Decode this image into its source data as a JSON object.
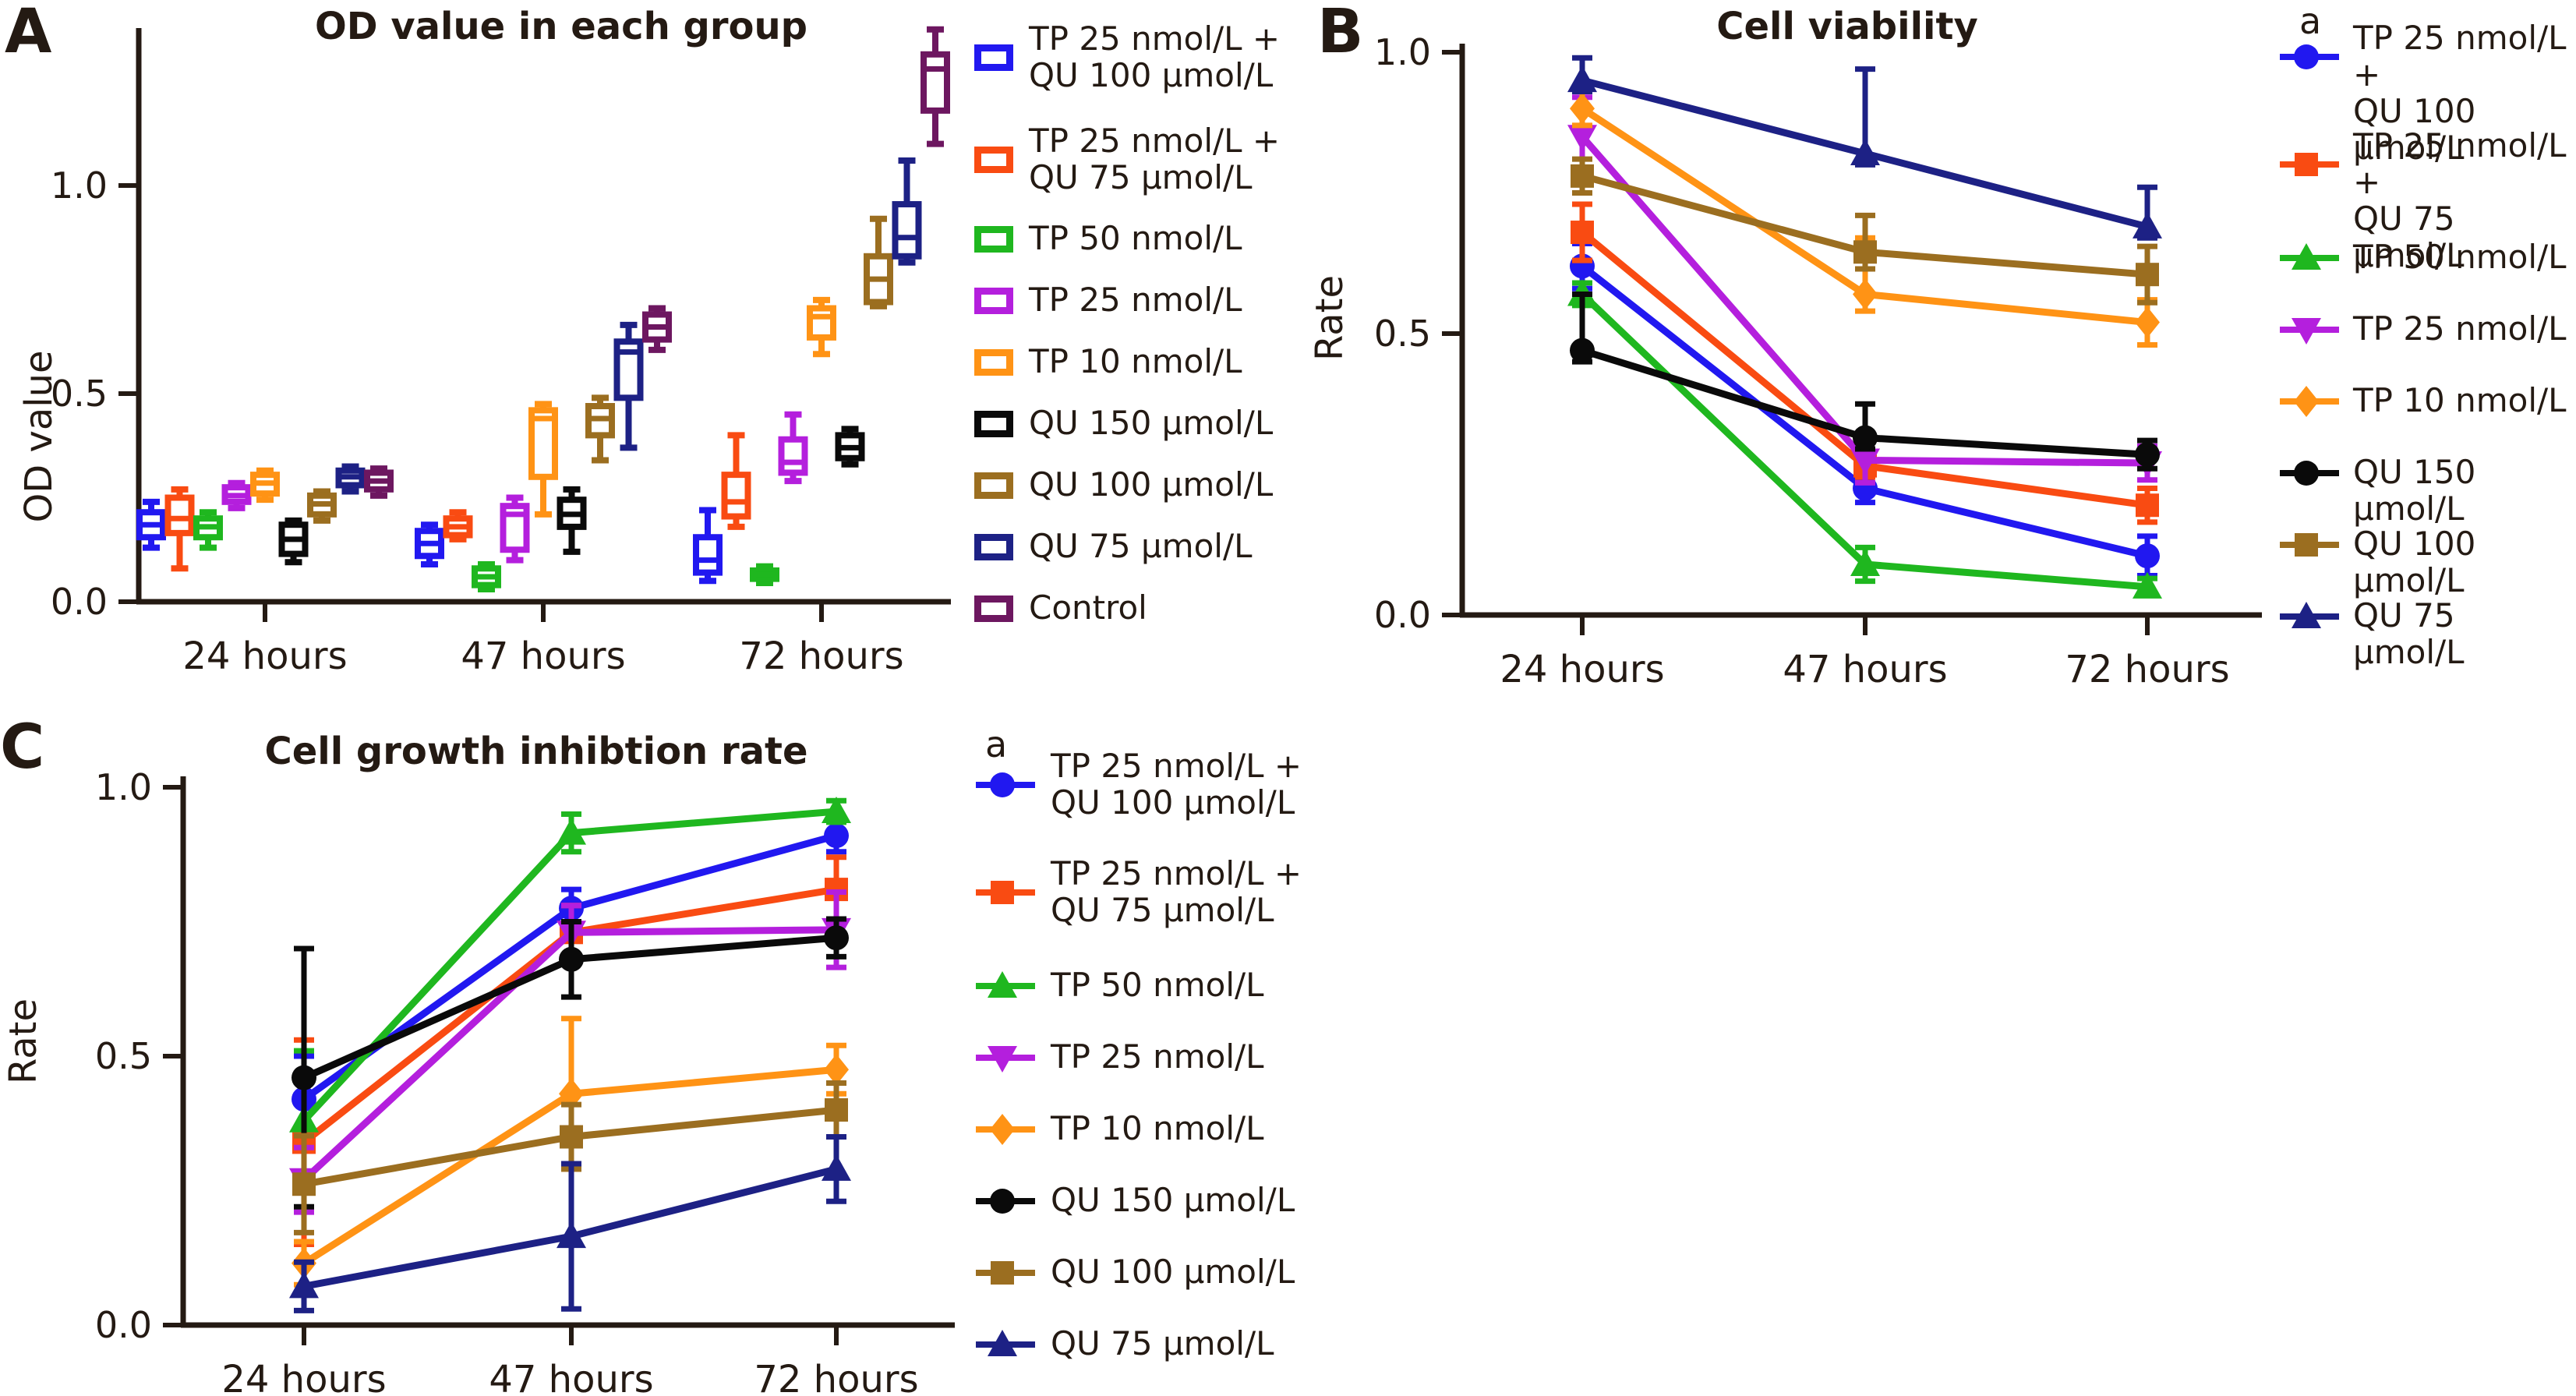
{
  "figure_description": "Three-panel scientific figure of TP/QU drug effects on cells",
  "colors": {
    "blue": "#2118f0",
    "orangered": "#f94b12",
    "green": "#1fb71f",
    "magenta": "#b41fdd",
    "orange": "#ff9315",
    "black": "#0a0a0a",
    "brown": "#9b6e20",
    "navy": "#1d2185",
    "control_purple": "#6d1760",
    "text": "#241a13"
  },
  "chart_data": [
    {
      "type": "box",
      "panel_label": "A",
      "title": "OD value in each group",
      "xlabel": "",
      "ylabel": "OD value",
      "categories": [
        "24 hours",
        "47 hours",
        "72 hours"
      ],
      "yticks": [
        "0.0",
        "0.5",
        "1.0"
      ],
      "ytick_values": [
        0,
        0.5,
        1.0
      ],
      "ylim": [
        0,
        1.4
      ],
      "grid": false,
      "legend_position": "right",
      "series": [
        {
          "name": "TP 25 nmol/L + QU 100 μmol/L",
          "label_lines": [
            "TP 25 nmol/L +",
            "QU 100 μmol/L"
          ],
          "color": "#2118f0",
          "boxes": [
            [
              0.13,
              0.155,
              0.185,
              0.215,
              0.24
            ],
            [
              0.09,
              0.11,
              0.14,
              0.17,
              0.185
            ],
            [
              0.05,
              0.07,
              0.1,
              0.155,
              0.22
            ]
          ]
        },
        {
          "name": "TP 25 nmol/L + QU 75 μmol/L",
          "label_lines": [
            "TP 25 nmol/L +",
            "QU 75 μmol/L"
          ],
          "color": "#f94b12",
          "boxes": [
            [
              0.08,
              0.165,
              0.2,
              0.25,
              0.27
            ],
            [
              0.15,
              0.16,
              0.18,
              0.2,
              0.215
            ],
            [
              0.18,
              0.205,
              0.24,
              0.305,
              0.4
            ]
          ]
        },
        {
          "name": "TP 50 nmol/L",
          "label_lines": [
            "TP 50 nmol/L"
          ],
          "color": "#1fb71f",
          "boxes": [
            [
              0.13,
              0.155,
              0.18,
              0.2,
              0.215
            ],
            [
              0.03,
              0.04,
              0.06,
              0.08,
              0.09
            ],
            [
              0.045,
              0.055,
              0.065,
              0.075,
              0.085
            ]
          ]
        },
        {
          "name": "TP 25 nmol/L",
          "label_lines": [
            "TP 25 nmol/L"
          ],
          "color": "#b41fdd",
          "boxes": [
            [
              0.225,
              0.24,
              0.255,
              0.275,
              0.285
            ],
            [
              0.1,
              0.125,
              0.21,
              0.23,
              0.25
            ],
            [
              0.29,
              0.31,
              0.335,
              0.39,
              0.45
            ]
          ]
        },
        {
          "name": "TP 10 nmol/L",
          "label_lines": [
            "TP 10 nmol/L"
          ],
          "color": "#ff9315",
          "boxes": [
            [
              0.245,
              0.26,
              0.285,
              0.305,
              0.315
            ],
            [
              0.21,
              0.3,
              0.44,
              0.46,
              0.475
            ],
            [
              0.595,
              0.635,
              0.685,
              0.705,
              0.725
            ]
          ]
        },
        {
          "name": "QU 150 μmol/L",
          "label_lines": [
            "QU 150 μmol/L"
          ],
          "color": "#0a0a0a",
          "boxes": [
            [
              0.095,
              0.115,
              0.15,
              0.185,
              0.195
            ],
            [
              0.12,
              0.18,
              0.21,
              0.245,
              0.27
            ],
            [
              0.33,
              0.345,
              0.37,
              0.4,
              0.415
            ]
          ]
        },
        {
          "name": "QU 100 μmol/L",
          "label_lines": [
            "QU 100 μmol/L"
          ],
          "color": "#9b6e20",
          "boxes": [
            [
              0.195,
              0.21,
              0.235,
              0.255,
              0.265
            ],
            [
              0.34,
              0.4,
              0.44,
              0.47,
              0.49
            ],
            [
              0.71,
              0.72,
              0.775,
              0.83,
              0.92
            ]
          ]
        },
        {
          "name": "QU 75 μmol/L",
          "label_lines": [
            "QU 75 μmol/L"
          ],
          "color": "#1d2185",
          "boxes": [
            [
              0.265,
              0.28,
              0.3,
              0.315,
              0.325
            ],
            [
              0.37,
              0.49,
              0.6,
              0.625,
              0.665
            ],
            [
              0.815,
              0.83,
              0.875,
              0.955,
              1.06
            ]
          ]
        },
        {
          "name": "Control",
          "label_lines": [
            "Control"
          ],
          "color": "#6d1760",
          "boxes": [
            [
              0.255,
              0.27,
              0.29,
              0.31,
              0.32
            ],
            [
              0.605,
              0.63,
              0.66,
              0.69,
              0.705
            ],
            [
              1.1,
              1.18,
              1.28,
              1.315,
              1.375
            ]
          ]
        }
      ]
    },
    {
      "type": "line",
      "panel_label": "B",
      "title": "Cell viability",
      "xlabel": "",
      "ylabel": "Rate",
      "annotation": "a",
      "categories": [
        "24 hours",
        "47 hours",
        "72 hours"
      ],
      "yticks": [
        "0.0",
        "0.5",
        "1.0"
      ],
      "ytick_values": [
        0,
        0.5,
        1.0
      ],
      "ylim": [
        0,
        1.0
      ],
      "grid": false,
      "legend_position": "right",
      "series": [
        {
          "name": "TP 25 nmol/L + QU 100 μmol/L",
          "label_lines": [
            "TP 25 nmol/L +",
            "QU 100 μmol/L"
          ],
          "color": "#2118f0",
          "marker": "circle",
          "values": [
            0.62,
            0.225,
            0.105
          ],
          "err_up": [
            0.04,
            0.025,
            0.035
          ],
          "err_down": [
            0.04,
            0.025,
            0.035
          ]
        },
        {
          "name": "TP 25 nmol/L + QU 75 μmol/L",
          "label_lines": [
            "TP 25 nmol/L +",
            "QU 75 μmol/L"
          ],
          "color": "#f94b12",
          "marker": "square",
          "values": [
            0.68,
            0.265,
            0.195
          ],
          "err_up": [
            0.05,
            0.02,
            0.03
          ],
          "err_down": [
            0.05,
            0.02,
            0.03
          ]
        },
        {
          "name": "TP 50 nmol/L",
          "label_lines": [
            "TP 50 nmol/L"
          ],
          "color": "#1fb71f",
          "marker": "triangle-up",
          "values": [
            0.57,
            0.09,
            0.05
          ],
          "err_up": [
            0.02,
            0.03,
            0.015
          ],
          "err_down": [
            0.02,
            0.03,
            0.015
          ]
        },
        {
          "name": "TP 25 nmol/L",
          "label_lines": [
            "TP 25 nmol/L"
          ],
          "color": "#b41fdd",
          "marker": "triangle-down",
          "values": [
            0.85,
            0.275,
            0.27
          ],
          "err_up": [
            0.07,
            0.04,
            0.03
          ],
          "err_down": [
            0.07,
            0.04,
            0.03
          ]
        },
        {
          "name": "TP 10 nmol/L",
          "label_lines": [
            "TP 10 nmol/L"
          ],
          "color": "#ff9315",
          "marker": "diamond",
          "values": [
            0.9,
            0.57,
            0.52
          ],
          "err_up": [
            0.03,
            0.1,
            0.04
          ],
          "err_down": [
            0.03,
            0.03,
            0.04
          ]
        },
        {
          "name": "QU 150 μmol/L",
          "label_lines": [
            "QU 150 μmol/L"
          ],
          "color": "#0a0a0a",
          "marker": "circle",
          "values": [
            0.47,
            0.315,
            0.285
          ],
          "err_up": [
            0.1,
            0.06,
            0.025
          ],
          "err_down": [
            0.02,
            0.02,
            0.025
          ]
        },
        {
          "name": "QU 100 μmol/L",
          "label_lines": [
            "QU 100 μmol/L"
          ],
          "color": "#9b6e20",
          "marker": "square",
          "values": [
            0.78,
            0.645,
            0.605
          ],
          "err_up": [
            0.03,
            0.065,
            0.05
          ],
          "err_down": [
            0.03,
            0.03,
            0.05
          ]
        },
        {
          "name": "QU 75 μmol/L",
          "label_lines": [
            "QU 75 μmol/L"
          ],
          "color": "#1d2185",
          "marker": "triangle-up",
          "values": [
            0.95,
            0.82,
            0.69
          ],
          "err_up": [
            0.04,
            0.15,
            0.07
          ],
          "err_down": [
            0.02,
            0.02,
            0.02
          ]
        }
      ]
    },
    {
      "type": "line",
      "panel_label": "C",
      "title": "Cell growth inhibtion rate",
      "xlabel": "",
      "ylabel": "Rate",
      "annotation": "a",
      "categories": [
        "24 hours",
        "47 hours",
        "72 hours"
      ],
      "yticks": [
        "0.0",
        "0.5",
        "1.0"
      ],
      "ytick_values": [
        0,
        0.5,
        1.0
      ],
      "ylim": [
        0,
        1.0
      ],
      "grid": false,
      "legend_position": "right",
      "series": [
        {
          "name": "TP 25 nmol/L + QU 100 μmol/L",
          "label_lines": [
            "TP 25 nmol/L +",
            "QU 100 μmol/L"
          ],
          "color": "#2118f0",
          "marker": "circle",
          "values": [
            0.42,
            0.775,
            0.91
          ],
          "err_up": [
            0.08,
            0.035,
            0.03
          ],
          "err_down": [
            0.08,
            0.035,
            0.03
          ]
        },
        {
          "name": "TP 25 nmol/L + QU 75 μmol/L",
          "label_lines": [
            "TP 25 nmol/L +",
            "QU 75 μmol/L"
          ],
          "color": "#f94b12",
          "marker": "square",
          "values": [
            0.34,
            0.73,
            0.81
          ],
          "err_up": [
            0.19,
            0.05,
            0.06
          ],
          "err_down": [
            0.19,
            0.05,
            0.06
          ]
        },
        {
          "name": "TP 50 nmol/L",
          "label_lines": [
            "TP 50 nmol/L"
          ],
          "color": "#1fb71f",
          "marker": "triangle-up",
          "values": [
            0.38,
            0.915,
            0.955
          ],
          "err_up": [
            0.13,
            0.035,
            0.02
          ],
          "err_down": [
            0.13,
            0.035,
            0.02
          ]
        },
        {
          "name": "TP 25 nmol/L",
          "label_lines": [
            "TP 25 nmol/L"
          ],
          "color": "#b41fdd",
          "marker": "triangle-down",
          "values": [
            0.27,
            0.73,
            0.735
          ],
          "err_up": [
            0.06,
            0.05,
            0.07
          ],
          "err_down": [
            0.06,
            0.05,
            0.07
          ]
        },
        {
          "name": "TP 10 nmol/L",
          "label_lines": [
            "TP 10 nmol/L"
          ],
          "color": "#ff9315",
          "marker": "diamond",
          "values": [
            0.115,
            0.43,
            0.475
          ],
          "err_up": [
            0.04,
            0.14,
            0.045
          ],
          "err_down": [
            0.04,
            0.14,
            0.045
          ]
        },
        {
          "name": "QU 150 μmol/L",
          "label_lines": [
            "QU 150 μmol/L"
          ],
          "color": "#0a0a0a",
          "marker": "circle",
          "values": [
            0.46,
            0.68,
            0.72
          ],
          "err_up": [
            0.24,
            0.07,
            0.035
          ],
          "err_down": [
            0.24,
            0.07,
            0.035
          ]
        },
        {
          "name": "QU 100 μmol/L",
          "label_lines": [
            "QU 100 μmol/L"
          ],
          "color": "#9b6e20",
          "marker": "square",
          "values": [
            0.262,
            0.35,
            0.4
          ],
          "err_up": [
            0.09,
            0.06,
            0.05
          ],
          "err_down": [
            0.09,
            0.06,
            0.05
          ]
        },
        {
          "name": "QU 75 μmol/L",
          "label_lines": [
            "QU 75 μmol/L"
          ],
          "color": "#1d2185",
          "marker": "triangle-up",
          "values": [
            0.072,
            0.165,
            0.29
          ],
          "err_up": [
            0.045,
            0.135,
            0.06
          ],
          "err_down": [
            0.045,
            0.135,
            0.06
          ]
        }
      ]
    }
  ]
}
